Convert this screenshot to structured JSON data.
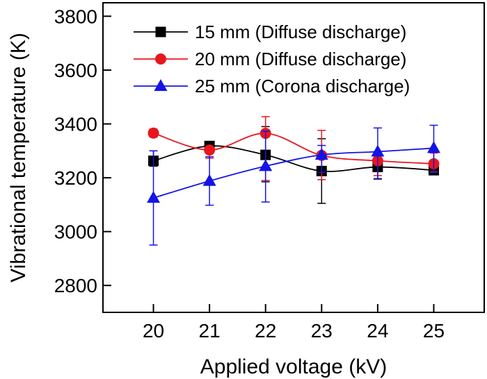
{
  "chart_data": {
    "type": "line",
    "xlabel": "Applied voltage (kV)",
    "ylabel": "Vibrational temperature (K)",
    "xlim": [
      19.1,
      25.9
    ],
    "ylim": [
      2700,
      3850
    ],
    "x_ticks": [
      20,
      21,
      22,
      23,
      24,
      25
    ],
    "y_ticks": [
      2800,
      3000,
      3200,
      3400,
      3600,
      3800
    ],
    "legend_position": "top-right",
    "grid": false,
    "series": [
      {
        "name": "15 mm (Diffuse discharge)",
        "color": "#000000",
        "marker": "square",
        "x": [
          20,
          21,
          22,
          23,
          24,
          25
        ],
        "y": [
          3263,
          3318,
          3285,
          3225,
          3240,
          3228
        ],
        "err_low": [
          20,
          15,
          100,
          120,
          45,
          15
        ],
        "err_high": [
          37,
          10,
          105,
          120,
          30,
          12
        ]
      },
      {
        "name": "20 mm (Diffuse discharge)",
        "color": "#e8161d",
        "marker": "circle",
        "x": [
          20,
          21,
          22,
          23,
          24,
          25
        ],
        "y": [
          3366,
          3303,
          3365,
          3283,
          3263,
          3252
        ],
        "err_low": [
          15,
          30,
          175,
          90,
          55,
          30
        ],
        "err_high": [
          15,
          10,
          62,
          93,
          25,
          40
        ]
      },
      {
        "name": "25 mm (Corona discharge)",
        "color": "#1414e6",
        "marker": "triangle",
        "x": [
          20,
          21,
          22,
          23,
          24,
          25
        ],
        "y": [
          3125,
          3188,
          3243,
          3285,
          3297,
          3310
        ],
        "err_low": [
          175,
          90,
          133,
          65,
          100,
          90
        ],
        "err_high": [
          175,
          90,
          130,
          35,
          88,
          85
        ]
      }
    ]
  }
}
